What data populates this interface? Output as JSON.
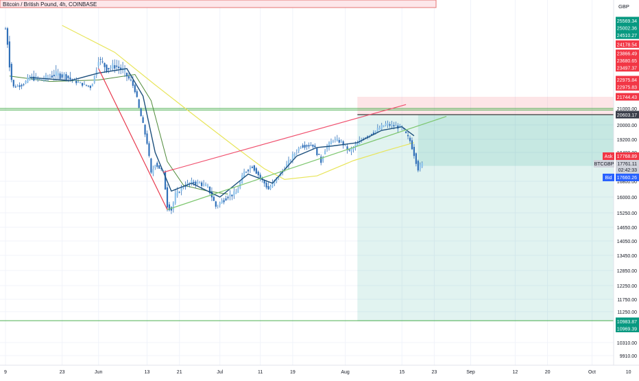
{
  "header": {
    "title": "Bitcoin / British Pound, 4h, COINBASE"
  },
  "chart_data": {
    "type": "candlestick",
    "title": "Bitcoin / British Pound, 4h, COINBASE",
    "currency": "GBP",
    "symbol": "BTCGBP",
    "y_axis_ticks": [
      25569.34,
      25002.36,
      24510.27,
      24178.54,
      23866.49,
      23680.65,
      23497.37,
      22975.84,
      22975.83,
      21744.43,
      21000.0,
      20603.17,
      20000.0,
      19200.0,
      18400.0,
      17768.89,
      17761.11,
      17660.26,
      16800.0,
      16000.0,
      15250.0,
      14650.0,
      14050.0,
      13450.0,
      12850.0,
      12250.0,
      11750.0,
      11250.0,
      10983.87,
      10969.39,
      10310.0,
      9910.0
    ],
    "price_labels": [
      {
        "value": "25569.34",
        "kind": "green"
      },
      {
        "value": "25002.36",
        "kind": "green"
      },
      {
        "value": "24510.27",
        "kind": "green"
      },
      {
        "value": "24178.54",
        "kind": "red"
      },
      {
        "value": "23866.49",
        "kind": "red"
      },
      {
        "value": "23680.65",
        "kind": "red"
      },
      {
        "value": "23497.37",
        "kind": "red"
      },
      {
        "value": "22975.84",
        "kind": "red"
      },
      {
        "value": "22975.83",
        "kind": "red"
      },
      {
        "value": "21744.43",
        "kind": "red"
      },
      {
        "value": "20603.17",
        "kind": "dark"
      },
      {
        "value": "10983.87",
        "kind": "green"
      },
      {
        "value": "10969.39",
        "kind": "green"
      }
    ],
    "axis_plain_labels": [
      "21000.00",
      "20000.00",
      "19200.00",
      "18400.00",
      "16800.00",
      "16000.00",
      "15250.00",
      "14650.00",
      "14050.00",
      "13450.00",
      "12850.00",
      "12250.00",
      "11750.00",
      "11250.00",
      "10310.00",
      "9910.00"
    ],
    "quote": {
      "ask_label": "Ask",
      "ask": "17768.89",
      "last_label": "BTCGBP",
      "last": "17761.11",
      "countdown": "02:42:33",
      "bid_label": "Bid",
      "bid": "17660.26"
    },
    "x_tick_labels": [
      "9",
      "23",
      "Jun",
      "13",
      "21",
      "Jul",
      "11",
      "19",
      "Aug",
      "15",
      "23",
      "Sep",
      "12",
      "20",
      "Oct",
      "10"
    ],
    "price_series": [
      [
        "May 9",
        24950
      ],
      [
        "May 10",
        23500
      ],
      [
        "May 11",
        22450
      ],
      [
        "May 13",
        22600
      ],
      [
        "May 15",
        23050
      ],
      [
        "May 18",
        22950
      ],
      [
        "May 21",
        23150
      ],
      [
        "May 24",
        23100
      ],
      [
        "May 27",
        22750
      ],
      [
        "May 30",
        22450
      ],
      [
        "Jun 1",
        23700
      ],
      [
        "Jun 3",
        23350
      ],
      [
        "Jun 5",
        23450
      ],
      [
        "Jun 7",
        23300
      ],
      [
        "Jun 9",
        22900
      ],
      [
        "Jun 10",
        22200
      ],
      [
        "Jun 11",
        21000
      ],
      [
        "Jun 13",
        19000
      ],
      [
        "Jun 14",
        17200
      ],
      [
        "Jun 15",
        17800
      ],
      [
        "Jun 17",
        17300
      ],
      [
        "Jun 18",
        15600
      ],
      [
        "Jun 19",
        15400
      ],
      [
        "Jun 20",
        16100
      ],
      [
        "Jun 22",
        16550
      ],
      [
        "Jun 24",
        16750
      ],
      [
        "Jun 26",
        16700
      ],
      [
        "Jun 28",
        16500
      ],
      [
        "Jun 30",
        15550
      ],
      [
        "Jul 3",
        16050
      ],
      [
        "Jul 5",
        16200
      ],
      [
        "Jul 7",
        17300
      ],
      [
        "Jul 9",
        17650
      ],
      [
        "Jul 11",
        17000
      ],
      [
        "Jul 13",
        16400
      ],
      [
        "Jul 15",
        16950
      ],
      [
        "Jul 17",
        17550
      ],
      [
        "Jul 19",
        18200
      ],
      [
        "Jul 21",
        18800
      ],
      [
        "Jul 24",
        18850
      ],
      [
        "Jul 26",
        17900
      ],
      [
        "Jul 27",
        18600
      ],
      [
        "Jul 29",
        19200
      ],
      [
        "Jul 31",
        19050
      ],
      [
        "Aug 2",
        18450
      ],
      [
        "Aug 5",
        19200
      ],
      [
        "Aug 8",
        19600
      ],
      [
        "Aug 11",
        20050
      ],
      [
        "Aug 13",
        19950
      ],
      [
        "Aug 15",
        19850
      ],
      [
        "Aug 17",
        19100
      ],
      [
        "Aug 19",
        17500
      ],
      [
        "Aug 20",
        17761
      ]
    ],
    "moving_average_blue": [
      [
        "May 15",
        23050
      ],
      [
        "May 25",
        22900
      ],
      [
        "Jun 1",
        23200
      ],
      [
        "Jun 8",
        23350
      ],
      [
        "Jun 12",
        21800
      ],
      [
        "Jun 15",
        18400
      ],
      [
        "Jun 19",
        16300
      ],
      [
        "Jun 24",
        16700
      ],
      [
        "Jul 1",
        16000
      ],
      [
        "Jul 8",
        17200
      ],
      [
        "Jul 14",
        16700
      ],
      [
        "Jul 20",
        18200
      ],
      [
        "Jul 25",
        18700
      ],
      [
        "Jul 29",
        18800
      ],
      [
        "Aug 4",
        19000
      ],
      [
        "Aug 10",
        19700
      ],
      [
        "Aug 15",
        19900
      ],
      [
        "Aug 18",
        19400
      ]
    ],
    "moving_average_green": [
      [
        "May 10",
        23100
      ],
      [
        "May 20",
        22850
      ],
      [
        "Jun 1",
        22950
      ],
      [
        "Jun 10",
        23150
      ],
      [
        "Jun 14",
        21500
      ],
      [
        "Jun 18",
        17900
      ],
      [
        "Jun 22",
        16600
      ],
      [
        "Jun 28",
        16300
      ],
      [
        "Jul 3",
        16150
      ]
    ],
    "moving_average_yellow": [
      [
        "May 23",
        25200
      ],
      [
        "Jun 5",
        23900
      ],
      [
        "Jun 15",
        22600
      ],
      [
        "Jun 25",
        20500
      ],
      [
        "Jul 5",
        18700
      ],
      [
        "Jul 12",
        17500
      ],
      [
        "Jul 17",
        16900
      ],
      [
        "Jul 25",
        17100
      ],
      [
        "Aug 3",
        17950
      ],
      [
        "Aug 11",
        18500
      ],
      [
        "Aug 18",
        19000
      ]
    ],
    "drawings": {
      "red_decline_line": [
        [
          "Jun 1",
          23350
        ],
        [
          "Jun 18",
          15400
        ]
      ],
      "wedge_upper": [
        [
          "Jun 17",
          17300
        ],
        [
          "Aug 16",
          21250
        ]
      ],
      "wedge_lower": [
        [
          "Jun 18",
          15400
        ],
        [
          "Aug 26",
          20500
        ]
      ],
      "horizontal_green_lines": [
        21000,
        20900,
        11000
      ],
      "position": {
        "start": "Aug 4",
        "end": "Oct 16",
        "entry": 20603.17,
        "stop": 21744.43,
        "target": 10983.87,
        "current_box_end": 17660.26
      }
    }
  }
}
